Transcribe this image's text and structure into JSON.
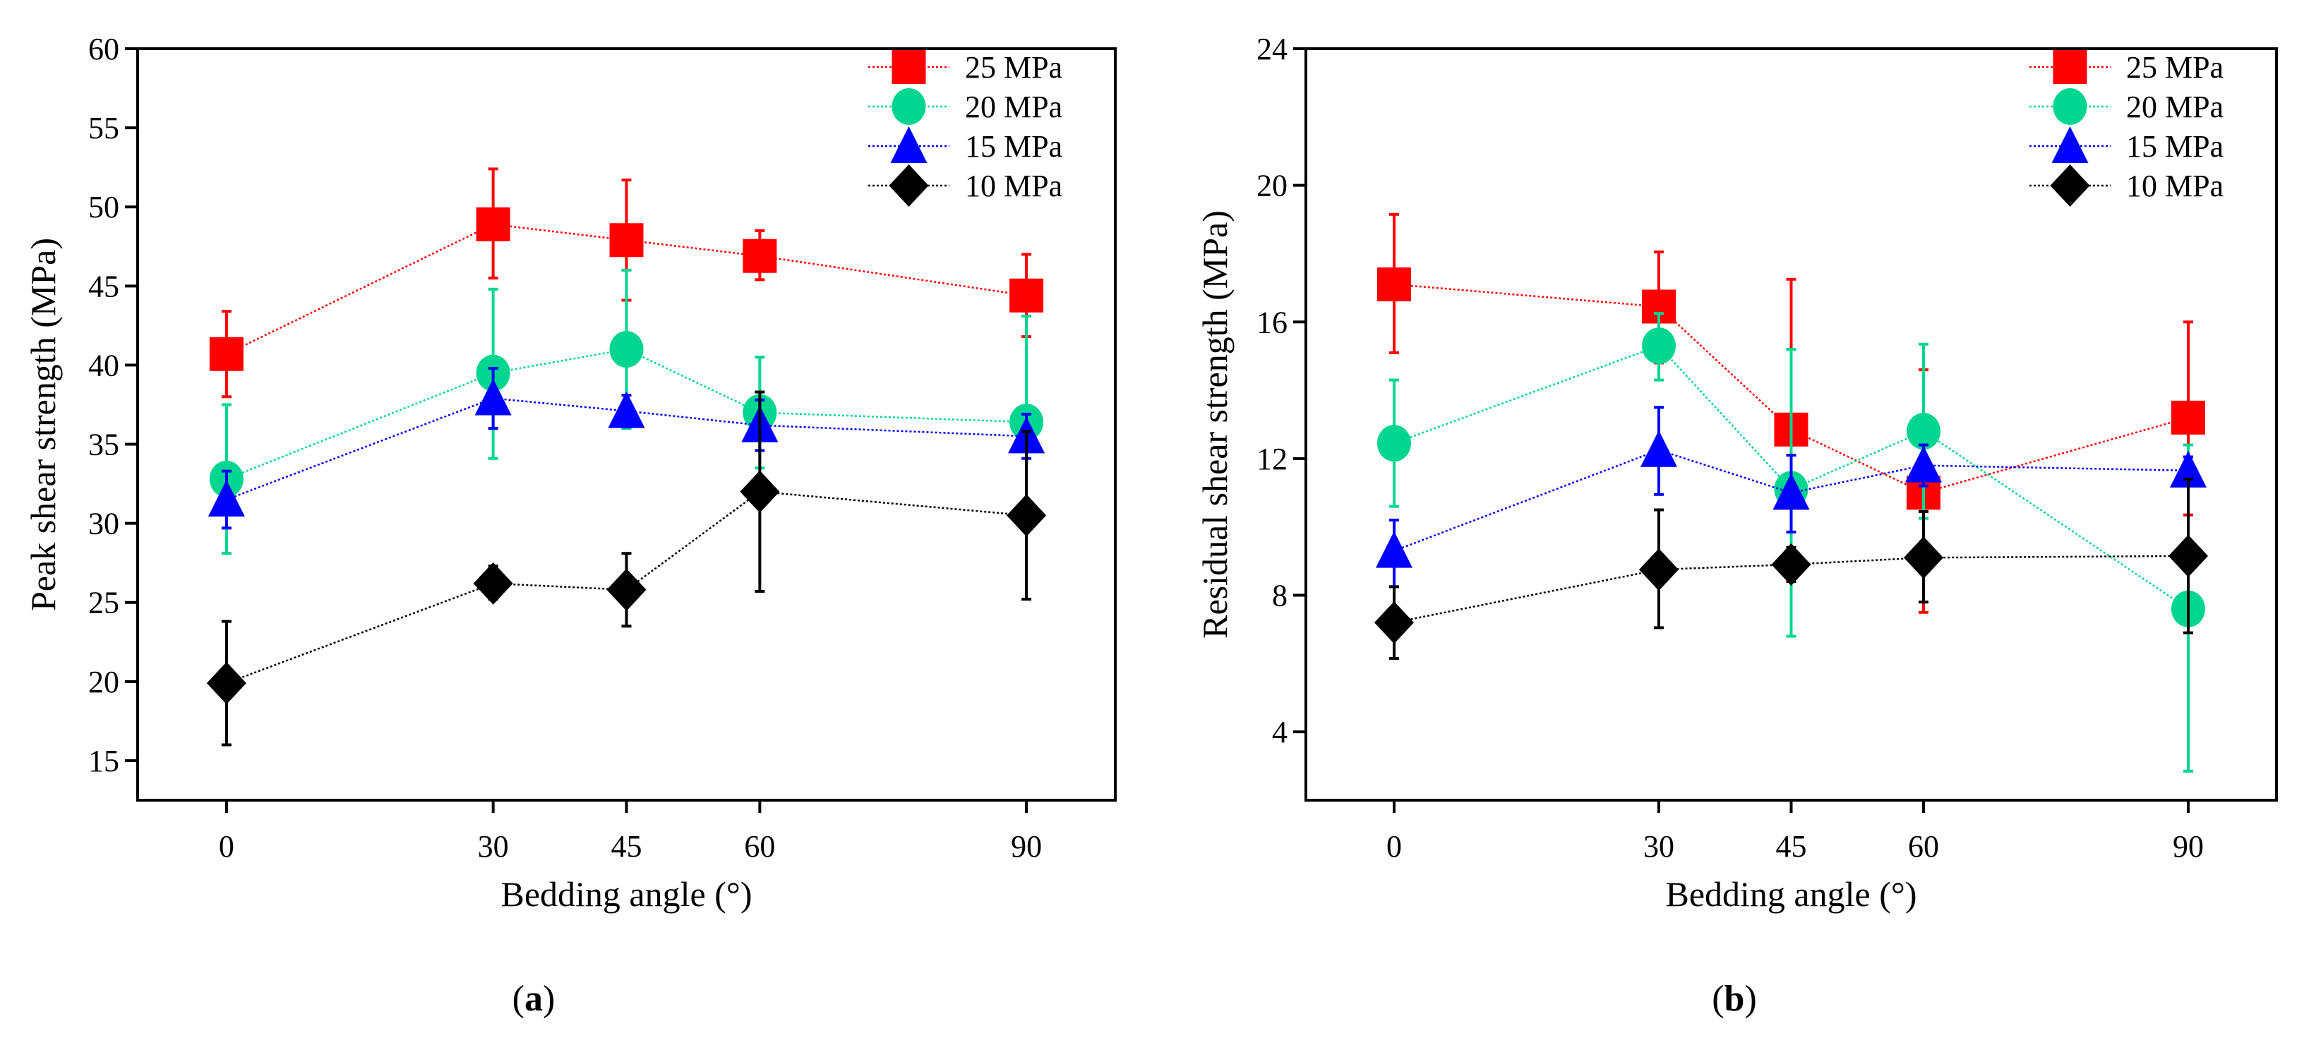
{
  "chart_data": [
    {
      "id": "a",
      "type": "scatter",
      "caption": "a",
      "xlabel": "Bedding angle (°)",
      "ylabel": "Peak shear strength (MPa)",
      "xlim": [
        -10,
        100
      ],
      "ylim": [
        12.5,
        60
      ],
      "xticks": [
        0,
        30,
        45,
        60,
        90
      ],
      "yticks": [
        15,
        20,
        25,
        30,
        35,
        40,
        45,
        50,
        55,
        60
      ],
      "legend_position": "top-right",
      "grid": false,
      "x": [
        0,
        30,
        45,
        60,
        90
      ],
      "series": [
        {
          "name": "25 MPa",
          "color": "#ff0000",
          "marker": "square",
          "values": [
            40.7,
            48.9,
            47.9,
            46.9,
            44.4
          ],
          "err_low": [
            38.0,
            45.5,
            44.1,
            45.4,
            41.8
          ],
          "err_high": [
            43.4,
            52.4,
            51.7,
            48.5,
            47.0
          ]
        },
        {
          "name": "20 MPa",
          "color": "#00d68f",
          "marker": "circle",
          "values": [
            32.8,
            39.5,
            41.0,
            37.0,
            36.4
          ],
          "err_low": [
            28.1,
            34.1,
            36.0,
            33.5,
            29.7
          ],
          "err_high": [
            37.5,
            44.8,
            46.0,
            40.5,
            43.1
          ]
        },
        {
          "name": "15 MPa",
          "color": "#0000ff",
          "marker": "triangle",
          "values": [
            31.5,
            37.9,
            37.1,
            36.2,
            35.5
          ],
          "err_low": [
            29.7,
            36.0,
            36.1,
            34.6,
            34.1
          ],
          "err_high": [
            33.3,
            39.8,
            38.1,
            37.8,
            36.9
          ]
        },
        {
          "name": "10 MPa",
          "color": "#000000",
          "marker": "diamond",
          "values": [
            19.9,
            26.2,
            25.8,
            32.0,
            30.5
          ],
          "err_low": [
            16.0,
            25.2,
            23.5,
            25.7,
            25.2
          ],
          "err_high": [
            23.8,
            27.3,
            28.1,
            38.3,
            35.8
          ]
        }
      ]
    },
    {
      "id": "b",
      "type": "scatter",
      "caption": "b",
      "xlabel": "Bedding angle (°)",
      "ylabel": "Residual shear strength (MPa)",
      "xlim": [
        -10,
        100
      ],
      "ylim": [
        2,
        24
      ],
      "xticks": [
        0,
        30,
        45,
        60,
        90
      ],
      "yticks": [
        4,
        8,
        12,
        16,
        20,
        24
      ],
      "legend_position": "top-right",
      "grid": false,
      "x": [
        0,
        30,
        45,
        60,
        90
      ],
      "series": [
        {
          "name": "25 MPa",
          "color": "#ff0000",
          "marker": "square",
          "values": [
            17.1,
            16.45,
            12.85,
            11.0,
            13.2
          ],
          "err_low": [
            15.1,
            14.8,
            8.5,
            7.5,
            10.35
          ],
          "err_high": [
            19.15,
            18.05,
            17.25,
            14.6,
            16.0
          ]
        },
        {
          "name": "20 MPa",
          "color": "#00d68f",
          "marker": "circle",
          "values": [
            12.45,
            15.3,
            11.1,
            12.8,
            7.6
          ],
          "err_low": [
            10.6,
            14.3,
            6.8,
            10.25,
            2.85
          ],
          "err_high": [
            14.3,
            16.25,
            15.2,
            15.35,
            12.4
          ]
        },
        {
          "name": "15 MPa",
          "color": "#0000ff",
          "marker": "triangle",
          "values": [
            9.3,
            12.25,
            11.0,
            11.8,
            11.65
          ],
          "err_low": [
            8.25,
            10.95,
            9.85,
            11.2,
            11.25
          ],
          "err_high": [
            10.2,
            13.5,
            12.1,
            12.4,
            12.05
          ]
        },
        {
          "name": "10 MPa",
          "color": "#000000",
          "marker": "diamond",
          "values": [
            7.2,
            8.75,
            8.9,
            9.1,
            9.15
          ],
          "err_low": [
            6.15,
            7.05,
            8.4,
            7.8,
            6.9
          ],
          "err_high": [
            8.25,
            10.5,
            9.4,
            10.45,
            11.4
          ]
        }
      ]
    }
  ]
}
